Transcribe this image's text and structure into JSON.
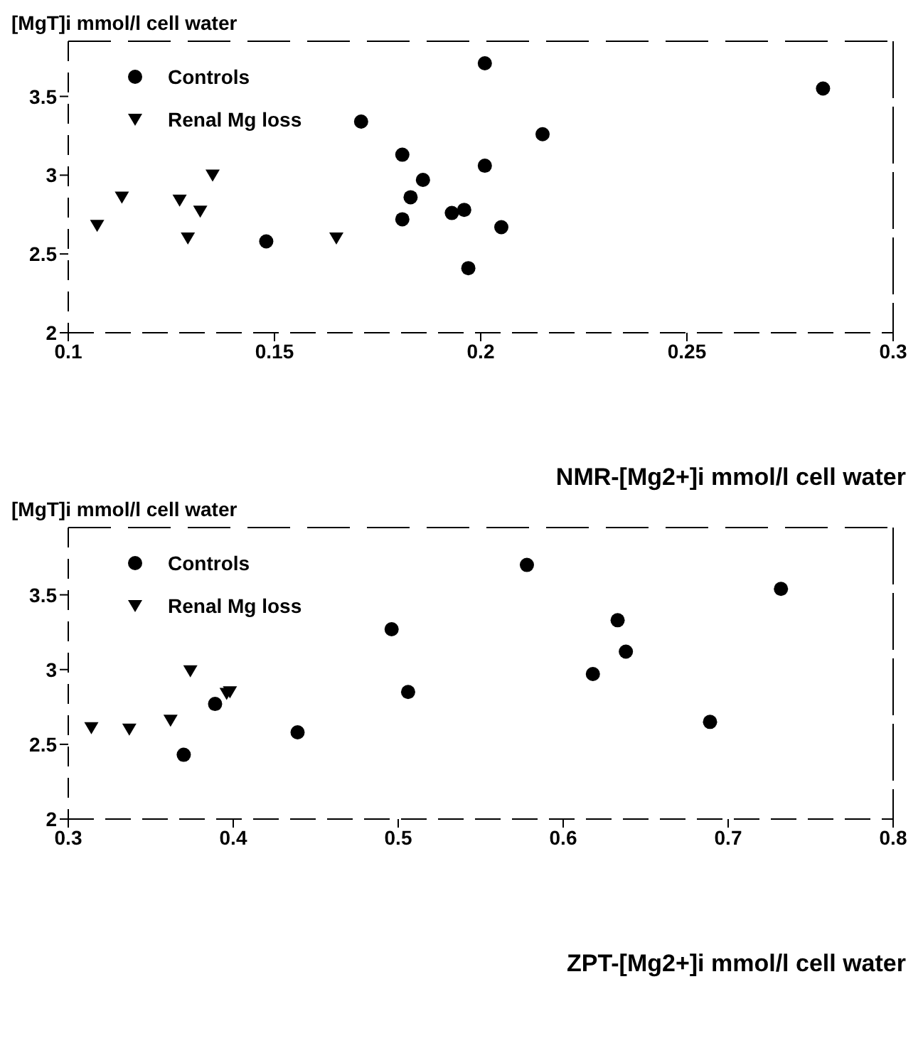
{
  "chart_data": [
    {
      "type": "scatter",
      "xlabel": "NMR-[Mg2+]i mmol/l cell water",
      "ylabel": "[MgT]i mmol/l cell water",
      "xlim": [
        0.1,
        0.3
      ],
      "xticks": [
        0.1,
        0.15,
        0.2,
        0.25,
        0.3
      ],
      "ylim": [
        2,
        3.85
      ],
      "yticks": [
        2,
        2.5,
        3,
        3.5
      ],
      "grid": false,
      "legend": "top left",
      "series": [
        {
          "name": "Controls",
          "color": "#000000",
          "marker": "circle",
          "x": [
            0.201,
            0.283,
            0.171,
            0.215,
            0.181,
            0.201,
            0.186,
            0.183,
            0.181,
            0.193,
            0.196,
            0.205,
            0.197,
            0.148
          ],
          "values": [
            3.71,
            3.55,
            3.34,
            3.26,
            3.13,
            3.06,
            2.97,
            2.86,
            2.72,
            2.76,
            2.78,
            2.67,
            2.41,
            2.58
          ]
        },
        {
          "name": "Renal Mg loss",
          "color": "#000000",
          "marker": "triangle",
          "x": [
            0.107,
            0.113,
            0.127,
            0.132,
            0.135,
            0.129,
            0.165
          ],
          "values": [
            2.68,
            2.86,
            2.84,
            2.77,
            3.0,
            2.6,
            2.6
          ]
        }
      ]
    },
    {
      "type": "scatter",
      "xlabel": "ZPT-[Mg2+]i mmol/l cell water",
      "ylabel": "[MgT]i mmol/l cell water",
      "xlim": [
        0.3,
        0.8
      ],
      "xticks": [
        0.3,
        0.4,
        0.5,
        0.6,
        0.7,
        0.8
      ],
      "ylim": [
        2,
        3.95
      ],
      "yticks": [
        2,
        2.5,
        3,
        3.5
      ],
      "grid": false,
      "legend": "top left",
      "series": [
        {
          "name": "Controls",
          "color": "#000000",
          "marker": "circle",
          "x": [
            0.578,
            0.732,
            0.496,
            0.633,
            0.638,
            0.618,
            0.506,
            0.689,
            0.389,
            0.439,
            0.37
          ],
          "values": [
            3.7,
            3.54,
            3.27,
            3.33,
            3.12,
            2.97,
            2.85,
            2.65,
            2.77,
            2.58,
            2.43
          ]
        },
        {
          "name": "Renal Mg loss",
          "color": "#000000",
          "marker": "triangle",
          "x": [
            0.314,
            0.337,
            0.362,
            0.374,
            0.396,
            0.398
          ],
          "values": [
            2.61,
            2.6,
            2.66,
            2.99,
            2.84,
            2.85
          ]
        }
      ]
    }
  ]
}
